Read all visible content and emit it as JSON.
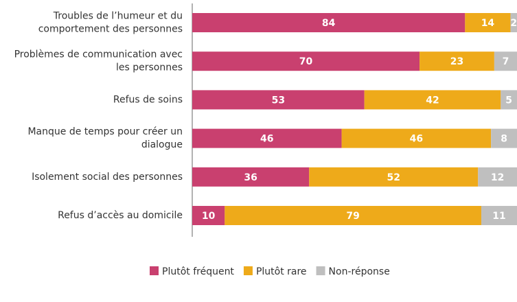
{
  "chart_data": {
    "type": "stacked_bar_horizontal",
    "categories": [
      "Troubles de l’humeur et du comportement des personnes",
      "Problèmes de communication avec les personnes",
      "Refus de soins",
      "Manque de temps pour créer un dialogue",
      "Isolement social des personnes",
      "Refus d’accès au domicile"
    ],
    "series": [
      {
        "name": "Plutôt fréquent",
        "color": "#c9406f",
        "values": [
          84,
          70,
          53,
          46,
          36,
          10
        ]
      },
      {
        "name": "Plutôt rare",
        "color": "#eeaa1a",
        "values": [
          14,
          23,
          42,
          46,
          52,
          79
        ]
      },
      {
        "name": "Non-réponse",
        "color": "#bfbfbf",
        "values": [
          2,
          7,
          5,
          8,
          12,
          11
        ]
      }
    ],
    "xlim": [
      0,
      100
    ]
  }
}
